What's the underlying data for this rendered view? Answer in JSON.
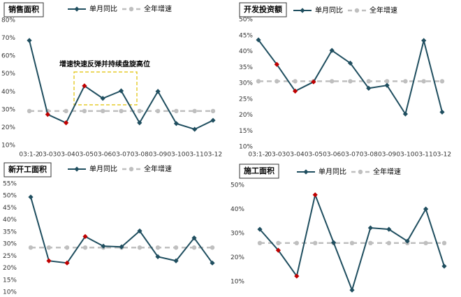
{
  "chart_data": [
    {
      "type": "line",
      "title": "销售面积",
      "categories": [
        "03:1-2",
        "03-03",
        "03-04",
        "03-05",
        "03-06",
        "03-07",
        "03-08",
        "03-09",
        "03-10",
        "03-11",
        "03-12"
      ],
      "series": [
        {
          "name": "单月同比",
          "color": "#1f4e5f",
          "values": [
            68.7,
            27.3,
            22.6,
            43.3,
            36.3,
            40.5,
            22.6,
            40.2,
            22.2,
            19,
            24
          ],
          "marker_colors": [
            "#1f4e5f",
            "#c00000",
            "#c00000",
            "#c00000",
            "#1f4e5f",
            "#1f4e5f",
            "#1f4e5f",
            "#1f4e5f",
            "#1f4e5f",
            "#1f4e5f",
            "#1f4e5f"
          ]
        },
        {
          "name": "全年增速",
          "color": "#bfbfbf",
          "dashed": true,
          "values": [
            29.2,
            29.2,
            29.2,
            29.2,
            29.2,
            29.2,
            29.2,
            29.2,
            29.2,
            29.2,
            29.2
          ]
        }
      ],
      "ylim": [
        10,
        80
      ],
      "yticks": [
        {
          "value": 10,
          "label": "10%"
        },
        {
          "value": 20,
          "label": "20%"
        },
        {
          "value": 30,
          "label": "30%"
        },
        {
          "value": 40,
          "label": "40%"
        },
        {
          "value": 50,
          "label": "50%"
        },
        {
          "value": 60,
          "label": "60%"
        },
        {
          "value": 70,
          "label": "70%"
        },
        {
          "value": 80,
          "label": "80%"
        }
      ],
      "annotation": "增速快速反弹并持续盘旋高位",
      "grid": false
    },
    {
      "type": "line",
      "title": "开发投资额",
      "categories": [
        "03:1-2",
        "03-03",
        "03-04",
        "03-05",
        "03-06",
        "03-07",
        "03-08",
        "03-09",
        "03-10",
        "03-11",
        "03-12"
      ],
      "series": [
        {
          "name": "单月同比",
          "color": "#1f4e5f",
          "values": [
            43.6,
            35.9,
            27.5,
            30.4,
            40.3,
            36.3,
            28.4,
            29.3,
            20.3,
            43.4,
            20.9
          ],
          "marker_colors": [
            "#1f4e5f",
            "#c00000",
            "#c00000",
            "#c00000",
            "#1f4e5f",
            "#1f4e5f",
            "#1f4e5f",
            "#1f4e5f",
            "#1f4e5f",
            "#1f4e5f",
            "#1f4e5f"
          ]
        },
        {
          "name": "全年增速",
          "color": "#bfbfbf",
          "dashed": true,
          "values": [
            30.6,
            30.6,
            30.6,
            30.6,
            30.6,
            30.6,
            30.6,
            30.6,
            30.6,
            30.6,
            30.6
          ]
        }
      ],
      "ylim": [
        10,
        50
      ],
      "yticks": [
        {
          "value": 10,
          "label": "10%"
        },
        {
          "value": 15,
          "label": "15%"
        },
        {
          "value": 20,
          "label": "20%"
        },
        {
          "value": 25,
          "label": "25%"
        },
        {
          "value": 30,
          "label": "30%"
        },
        {
          "value": 35,
          "label": "35%"
        },
        {
          "value": 40,
          "label": "40%"
        },
        {
          "value": 45,
          "label": "45%"
        },
        {
          "value": 50,
          "label": "50%"
        }
      ],
      "grid": false
    },
    {
      "type": "line",
      "title": "新开工面积",
      "series": [
        {
          "name": "单月同比",
          "color": "#1f4e5f",
          "values": [
            49.5,
            23,
            22.1,
            33.1,
            29.1,
            28.8,
            35.4,
            24.7,
            23,
            32.5,
            22.1
          ],
          "marker_colors": [
            "#1f4e5f",
            "#c00000",
            "#c00000",
            "#c00000",
            "#1f4e5f",
            "#1f4e5f",
            "#1f4e5f",
            "#1f4e5f",
            "#1f4e5f",
            "#1f4e5f",
            "#1f4e5f"
          ]
        },
        {
          "name": "全年增速",
          "color": "#bfbfbf",
          "dashed": true,
          "values": [
            28.5,
            28.5,
            28.5,
            28.5,
            28.5,
            28.5,
            28.5,
            28.5,
            28.5,
            28.5,
            28.5
          ]
        }
      ],
      "ylim": [
        10,
        55
      ],
      "yticks": [
        {
          "value": 10,
          "label": "10%"
        },
        {
          "value": 15,
          "label": "15%"
        },
        {
          "value": 20,
          "label": "20%"
        },
        {
          "value": 25,
          "label": "25%"
        },
        {
          "value": 30,
          "label": "30%"
        },
        {
          "value": 35,
          "label": "35%"
        },
        {
          "value": 40,
          "label": "40%"
        },
        {
          "value": 45,
          "label": "45%"
        },
        {
          "value": 50,
          "label": "50%"
        },
        {
          "value": 55,
          "label": "55%"
        }
      ],
      "grid": false
    },
    {
      "type": "line",
      "title": "施工面积",
      "series": [
        {
          "name": "单月同比",
          "color": "#1f4e5f",
          "values": [
            31.7,
            23,
            12.3,
            46,
            26.2,
            6.5,
            32.3,
            31.7,
            26.8,
            40.1,
            16.4
          ],
          "marker_colors": [
            "#1f4e5f",
            "#c00000",
            "#c00000",
            "#c00000",
            "#1f4e5f",
            "#1f4e5f",
            "#1f4e5f",
            "#1f4e5f",
            "#1f4e5f",
            "#1f4e5f",
            "#1f4e5f"
          ]
        },
        {
          "name": "全年增速",
          "color": "#bfbfbf",
          "dashed": true,
          "values": [
            26,
            26,
            26,
            26,
            26,
            26,
            26,
            26,
            26,
            26,
            26
          ]
        }
      ],
      "ylim": [
        5,
        50
      ],
      "yticks": [
        {
          "value": 10,
          "label": "10%"
        },
        {
          "value": 20,
          "label": "20%"
        },
        {
          "value": 30,
          "label": "30%"
        },
        {
          "value": 40,
          "label": "40%"
        },
        {
          "value": 50,
          "label": "50%"
        }
      ],
      "grid": false
    }
  ]
}
